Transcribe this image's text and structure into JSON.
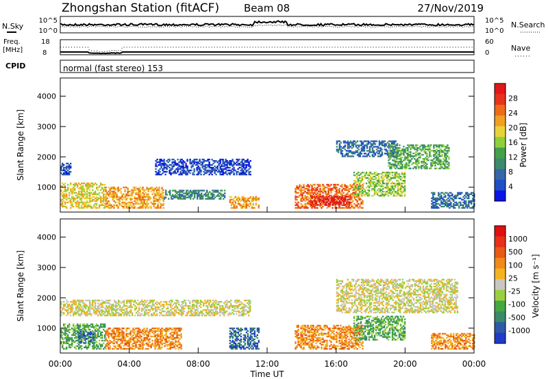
{
  "header": {
    "station": "Zhongshan Station (fitACF)",
    "beam": "Beam 08",
    "date": "27/Nov/2019"
  },
  "small_panels": {
    "nsky": {
      "label": "N.Sky",
      "ticks": [
        "10^5",
        "10^0"
      ]
    },
    "nsearch": {
      "label": "N.Search",
      "ticks": [
        "10^5",
        "10^0"
      ]
    },
    "freq": {
      "label_line1": "Freq.",
      "label_line2": "[MHz]",
      "ticks": [
        "18",
        "8"
      ]
    },
    "nave": {
      "label": "Nave",
      "ticks": [
        "60",
        "0"
      ]
    },
    "cpid": {
      "label": "CPID",
      "value": "normal (fast stereo) 153"
    }
  },
  "chart_data": [
    {
      "type": "heatmap",
      "panel": "power",
      "title": "",
      "xlabel": "",
      "ylabel": "Slant Range [km]",
      "y_ticks": [
        "4000",
        "3000",
        "2000",
        "1000"
      ],
      "y_tick_values": [
        4000,
        3000,
        2000,
        1000
      ],
      "ylim": [
        180,
        4600
      ],
      "colorbar": {
        "label": "Power [dB]",
        "tick_labels": [
          "28",
          "24",
          "20",
          "16",
          "12",
          "8",
          "4"
        ],
        "colors": [
          "#0a14e6",
          "#1f4fc4",
          "#3566a8",
          "#3b8a6e",
          "#43a04a",
          "#8fcf3a",
          "#e8d23a",
          "#f0a020",
          "#ee6c18",
          "#e8321c",
          "#e01818"
        ]
      },
      "echo_regions": [
        {
          "t0": 0.0,
          "t1": 2.6,
          "r0": 300,
          "r1": 1150,
          "level": 6
        },
        {
          "t0": 0.0,
          "t1": 0.6,
          "r0": 1400,
          "r1": 1800,
          "level": 1
        },
        {
          "t0": 2.6,
          "t1": 6.0,
          "r0": 300,
          "r1": 1000,
          "level": 7
        },
        {
          "t0": 5.5,
          "t1": 11.0,
          "r0": 1400,
          "r1": 1900,
          "level": 1
        },
        {
          "t0": 6.0,
          "t1": 9.5,
          "r0": 600,
          "r1": 900,
          "level": 3
        },
        {
          "t0": 9.8,
          "t1": 11.5,
          "r0": 300,
          "r1": 700,
          "level": 7
        },
        {
          "t0": 13.6,
          "t1": 17.5,
          "r0": 300,
          "r1": 1100,
          "level": 8
        },
        {
          "t0": 14.5,
          "t1": 16.8,
          "r0": 400,
          "r1": 700,
          "level": 10
        },
        {
          "t0": 17.0,
          "t1": 20.0,
          "r0": 700,
          "r1": 1500,
          "level": 5
        },
        {
          "t0": 16.0,
          "t1": 19.5,
          "r0": 2000,
          "r1": 2500,
          "level": 2
        },
        {
          "t0": 19.0,
          "t1": 22.5,
          "r0": 1600,
          "r1": 2400,
          "level": 4
        },
        {
          "t0": 21.5,
          "t1": 24.0,
          "r0": 300,
          "r1": 800,
          "level": 2
        }
      ]
    },
    {
      "type": "heatmap",
      "panel": "velocity",
      "title": "",
      "xlabel": "Time UT",
      "ylabel": "Slant Range [km]",
      "x_ticks": [
        "00:00",
        "04:00",
        "08:00",
        "12:00",
        "16:00",
        "20:00",
        "00:00"
      ],
      "x_tick_hours": [
        0,
        4,
        8,
        12,
        16,
        20,
        24
      ],
      "y_ticks": [
        "4000",
        "3000",
        "2000",
        "1000"
      ],
      "y_tick_values": [
        4000,
        3000,
        2000,
        1000
      ],
      "ylim": [
        180,
        4600
      ],
      "colorbar": {
        "label": "Velocity [m s⁻¹]",
        "tick_labels": [
          "1000",
          "500",
          "100",
          "25",
          "-25",
          "-100",
          "-500",
          "-1000"
        ],
        "colors": [
          "#1e3cc8",
          "#2e5aa8",
          "#3a8a6a",
          "#44a840",
          "#9ad040",
          "#c8c8c0",
          "#f2b420",
          "#f08a18",
          "#e85a16",
          "#e83018",
          "#e01010"
        ]
      },
      "echo_regions": [
        {
          "t0": 0.0,
          "t1": 2.6,
          "r0": 300,
          "r1": 1150,
          "level": 3
        },
        {
          "t0": 1.0,
          "t1": 2.0,
          "r0": 500,
          "r1": 900,
          "level": 1
        },
        {
          "t0": 0.0,
          "t1": 11.0,
          "r0": 1400,
          "r1": 1900,
          "level": 5
        },
        {
          "t0": 2.6,
          "t1": 7.0,
          "r0": 300,
          "r1": 1000,
          "level": 7
        },
        {
          "t0": 9.8,
          "t1": 11.5,
          "r0": 300,
          "r1": 1000,
          "level": 1
        },
        {
          "t0": 13.6,
          "t1": 17.5,
          "r0": 300,
          "r1": 1100,
          "level": 7
        },
        {
          "t0": 17.0,
          "t1": 20.0,
          "r0": 600,
          "r1": 1400,
          "level": 3
        },
        {
          "t0": 16.0,
          "t1": 23.0,
          "r0": 1500,
          "r1": 2600,
          "level": 5
        },
        {
          "t0": 21.5,
          "t1": 24.0,
          "r0": 300,
          "r1": 800,
          "level": 7
        }
      ]
    }
  ]
}
